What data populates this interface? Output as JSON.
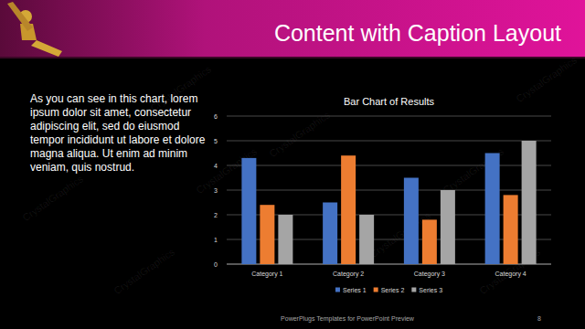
{
  "slide": {
    "title": "Content with Caption Layout",
    "caption": "As you can see in this chart, lorem ipsum dolor sit amet, consectetur adipiscing elit, sed do eiusmod tempor incididunt ut labore et dolore magna aliqua. Ut enim ad minim veniam, quis nostrud.",
    "footer": "PowerPlugs Templates for PowerPoint Preview",
    "page_number": "8",
    "watermark": "CrystalGraphics"
  },
  "chart_data": {
    "type": "bar",
    "title": "Bar Chart of Results",
    "categories": [
      "Category 1",
      "Category 2",
      "Category 3",
      "Category 4"
    ],
    "series": [
      {
        "name": "Series 1",
        "color": "#4472c4",
        "values": [
          4.3,
          2.5,
          3.5,
          4.5
        ]
      },
      {
        "name": "Series 2",
        "color": "#ed7d31",
        "values": [
          2.4,
          4.4,
          1.8,
          2.8
        ]
      },
      {
        "name": "Series 3",
        "color": "#a5a5a5",
        "values": [
          2,
          2,
          3,
          5
        ]
      }
    ],
    "ylim": [
      0,
      6
    ],
    "yticks": [
      0,
      1,
      2,
      3,
      4,
      5,
      6
    ],
    "grid": true,
    "legend": "bottom"
  }
}
